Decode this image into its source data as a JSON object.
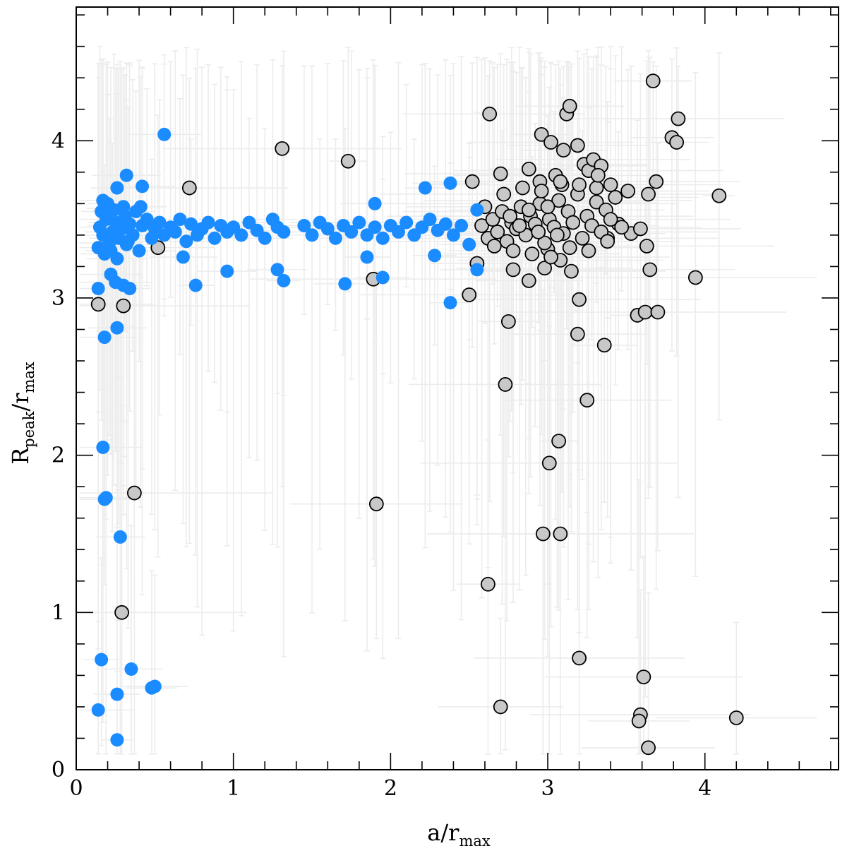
{
  "chart_data": {
    "type": "scatter",
    "title": "",
    "xlabel": {
      "base": "a/r",
      "sub": "max"
    },
    "ylabel": {
      "base": "R",
      "sub1": "peak",
      "mid": "/r",
      "sub2": "max"
    },
    "xlim": [
      0,
      4.85
    ],
    "ylim": [
      0,
      4.85
    ],
    "xticks": [
      0,
      1,
      2,
      3,
      4
    ],
    "yticks": [
      0,
      1,
      2,
      3,
      4
    ],
    "xtick_labels": [
      "0",
      "1",
      "2",
      "3",
      "4"
    ],
    "ytick_labels": [
      "0",
      "1",
      "2",
      "3",
      "4"
    ],
    "minor_tick_step": 0.2,
    "grid": false,
    "legend": "none",
    "colors": {
      "blue_series": "#1a8cff",
      "gray_series": "#c8c8c8",
      "marker_edge": "#000000",
      "error_bars": "#ececec"
    },
    "series": [
      {
        "marker": "blue-filled-circle",
        "color": "#1a8cff",
        "points": [
          [
            0.15,
            3.45
          ],
          [
            0.17,
            3.4
          ],
          [
            0.19,
            3.5
          ],
          [
            0.21,
            3.35
          ],
          [
            0.23,
            3.42
          ],
          [
            0.25,
            3.48
          ],
          [
            0.27,
            3.38
          ],
          [
            0.29,
            3.44
          ],
          [
            0.31,
            3.52
          ],
          [
            0.33,
            3.36
          ],
          [
            0.14,
            3.32
          ],
          [
            0.16,
            3.55
          ],
          [
            0.18,
            3.28
          ],
          [
            0.2,
            3.6
          ],
          [
            0.22,
            3.3
          ],
          [
            0.24,
            3.56
          ],
          [
            0.26,
            3.25
          ],
          [
            0.28,
            3.46
          ],
          [
            0.3,
            3.58
          ],
          [
            0.32,
            3.34
          ],
          [
            0.34,
            3.47
          ],
          [
            0.36,
            3.4
          ],
          [
            0.38,
            3.55
          ],
          [
            0.4,
            3.3
          ],
          [
            0.42,
            3.46
          ],
          [
            0.45,
            3.5
          ],
          [
            0.48,
            3.38
          ],
          [
            0.5,
            3.44
          ],
          [
            0.53,
            3.48
          ],
          [
            0.56,
            3.4
          ],
          [
            0.6,
            3.45
          ],
          [
            0.63,
            3.42
          ],
          [
            0.66,
            3.5
          ],
          [
            0.7,
            3.36
          ],
          [
            0.73,
            3.47
          ],
          [
            0.77,
            3.4
          ],
          [
            0.8,
            3.44
          ],
          [
            0.84,
            3.48
          ],
          [
            0.88,
            3.38
          ],
          [
            0.92,
            3.46
          ],
          [
            0.96,
            3.42
          ],
          [
            1.0,
            3.45
          ],
          [
            1.05,
            3.4
          ],
          [
            1.1,
            3.48
          ],
          [
            1.15,
            3.43
          ],
          [
            1.2,
            3.38
          ],
          [
            1.25,
            3.5
          ],
          [
            1.28,
            3.45
          ],
          [
            1.32,
            3.42
          ],
          [
            1.45,
            3.46
          ],
          [
            1.5,
            3.4
          ],
          [
            1.55,
            3.48
          ],
          [
            1.6,
            3.44
          ],
          [
            1.65,
            3.38
          ],
          [
            1.7,
            3.46
          ],
          [
            1.75,
            3.42
          ],
          [
            1.8,
            3.48
          ],
          [
            1.85,
            3.4
          ],
          [
            1.9,
            3.45
          ],
          [
            1.95,
            3.38
          ],
          [
            2.0,
            3.46
          ],
          [
            2.05,
            3.42
          ],
          [
            2.1,
            3.48
          ],
          [
            2.15,
            3.4
          ],
          [
            2.2,
            3.45
          ],
          [
            2.25,
            3.5
          ],
          [
            2.3,
            3.43
          ],
          [
            2.35,
            3.47
          ],
          [
            2.4,
            3.4
          ],
          [
            2.45,
            3.46
          ],
          [
            0.56,
            4.04
          ],
          [
            0.32,
            3.78
          ],
          [
            0.26,
            3.7
          ],
          [
            0.42,
            3.71
          ],
          [
            0.17,
            3.62
          ],
          [
            0.41,
            3.58
          ],
          [
            0.2,
            3.57
          ],
          [
            0.22,
            3.15
          ],
          [
            0.25,
            3.1
          ],
          [
            0.3,
            3.08
          ],
          [
            0.34,
            3.06
          ],
          [
            0.14,
            3.06
          ],
          [
            0.26,
            2.81
          ],
          [
            0.18,
            2.75
          ],
          [
            0.68,
            3.26
          ],
          [
            0.76,
            3.08
          ],
          [
            0.96,
            3.17
          ],
          [
            1.28,
            3.18
          ],
          [
            1.32,
            3.11
          ],
          [
            1.71,
            3.09
          ],
          [
            1.95,
            3.13
          ],
          [
            1.9,
            3.6
          ],
          [
            2.22,
            3.7
          ],
          [
            2.38,
            3.73
          ],
          [
            2.28,
            3.27
          ],
          [
            1.85,
            3.26
          ],
          [
            2.55,
            3.18
          ],
          [
            2.38,
            2.97
          ],
          [
            2.5,
            3.34
          ],
          [
            2.55,
            3.56
          ],
          [
            0.17,
            2.05
          ],
          [
            0.19,
            1.73
          ],
          [
            0.18,
            1.72
          ],
          [
            0.28,
            1.48
          ],
          [
            0.16,
            0.7
          ],
          [
            0.35,
            0.64
          ],
          [
            0.14,
            0.38
          ],
          [
            0.26,
            0.48
          ],
          [
            0.26,
            0.19
          ],
          [
            0.48,
            0.52
          ],
          [
            0.5,
            0.53
          ]
        ]
      },
      {
        "marker": "gray-filled-circle",
        "color": "#c8c8c8",
        "points": [
          [
            0.14,
            2.96
          ],
          [
            0.3,
            2.95
          ],
          [
            0.29,
            1.0
          ],
          [
            0.37,
            1.76
          ],
          [
            0.52,
            3.32
          ],
          [
            0.72,
            3.7
          ],
          [
            1.31,
            3.95
          ],
          [
            1.73,
            3.87
          ],
          [
            1.89,
            3.12
          ],
          [
            1.91,
            1.69
          ],
          [
            2.5,
            3.02
          ],
          [
            2.55,
            3.22
          ],
          [
            2.52,
            3.74
          ],
          [
            2.63,
            4.17
          ],
          [
            2.7,
            3.79
          ],
          [
            2.75,
            2.85
          ],
          [
            2.73,
            2.45
          ],
          [
            2.62,
            1.18
          ],
          [
            2.7,
            0.4
          ],
          [
            2.78,
            3.18
          ],
          [
            2.88,
            3.11
          ],
          [
            2.88,
            3.82
          ],
          [
            2.95,
            3.74
          ],
          [
            2.96,
            4.04
          ],
          [
            2.98,
            3.19
          ],
          [
            3.0,
            3.31
          ],
          [
            3.01,
            1.95
          ],
          [
            3.02,
            3.99
          ],
          [
            3.05,
            3.78
          ],
          [
            3.07,
            2.09
          ],
          [
            3.08,
            3.24
          ],
          [
            3.09,
            3.72
          ],
          [
            3.1,
            3.94
          ],
          [
            3.12,
            4.17
          ],
          [
            3.14,
            4.22
          ],
          [
            3.15,
            3.17
          ],
          [
            3.19,
            3.97
          ],
          [
            3.2,
            2.99
          ],
          [
            3.19,
            2.77
          ],
          [
            3.23,
            3.85
          ],
          [
            3.25,
            2.35
          ],
          [
            3.26,
            3.81
          ],
          [
            3.29,
            3.88
          ],
          [
            3.31,
            3.61
          ],
          [
            3.34,
            3.84
          ],
          [
            3.36,
            2.7
          ],
          [
            3.38,
            3.38
          ],
          [
            3.4,
            3.72
          ],
          [
            3.45,
            3.47
          ],
          [
            3.51,
            3.68
          ],
          [
            3.53,
            3.41
          ],
          [
            3.57,
            2.89
          ],
          [
            3.59,
            3.44
          ],
          [
            3.62,
            2.91
          ],
          [
            3.63,
            3.33
          ],
          [
            3.64,
            3.66
          ],
          [
            3.65,
            3.18
          ],
          [
            3.67,
            4.38
          ],
          [
            3.69,
            3.74
          ],
          [
            3.7,
            2.91
          ],
          [
            3.79,
            4.02
          ],
          [
            3.82,
            3.99
          ],
          [
            3.83,
            4.14
          ],
          [
            3.94,
            3.13
          ],
          [
            4.09,
            3.65
          ],
          [
            4.2,
            0.33
          ],
          [
            3.61,
            0.59
          ],
          [
            3.59,
            0.35
          ],
          [
            3.58,
            0.31
          ],
          [
            3.64,
            0.14
          ],
          [
            2.97,
            1.5
          ],
          [
            3.08,
            1.5
          ],
          [
            3.2,
            0.71
          ],
          [
            2.58,
            3.46
          ],
          [
            2.62,
            3.38
          ],
          [
            2.65,
            3.5
          ],
          [
            2.68,
            3.42
          ],
          [
            2.71,
            3.55
          ],
          [
            2.74,
            3.36
          ],
          [
            2.77,
            3.48
          ],
          [
            2.8,
            3.44
          ],
          [
            2.83,
            3.58
          ],
          [
            2.86,
            3.4
          ],
          [
            2.89,
            3.52
          ],
          [
            2.92,
            3.47
          ],
          [
            2.95,
            3.6
          ],
          [
            2.98,
            3.35
          ],
          [
            3.01,
            3.5
          ],
          [
            3.04,
            3.45
          ],
          [
            3.07,
            3.62
          ],
          [
            3.1,
            3.41
          ],
          [
            3.13,
            3.55
          ],
          [
            3.16,
            3.48
          ],
          [
            3.19,
            3.66
          ],
          [
            3.22,
            3.38
          ],
          [
            3.25,
            3.52
          ],
          [
            3.28,
            3.46
          ],
          [
            3.31,
            3.7
          ],
          [
            3.34,
            3.42
          ],
          [
            3.37,
            3.56
          ],
          [
            3.4,
            3.5
          ],
          [
            3.43,
            3.64
          ],
          [
            3.47,
            3.45
          ],
          [
            2.6,
            3.58
          ],
          [
            2.66,
            3.33
          ],
          [
            2.72,
            3.66
          ],
          [
            2.78,
            3.3
          ],
          [
            2.84,
            3.7
          ],
          [
            2.9,
            3.28
          ],
          [
            2.96,
            3.68
          ],
          [
            3.02,
            3.26
          ],
          [
            3.08,
            3.74
          ],
          [
            3.14,
            3.32
          ],
          [
            3.2,
            3.72
          ],
          [
            3.26,
            3.3
          ],
          [
            3.32,
            3.78
          ],
          [
            3.38,
            3.36
          ],
          [
            2.76,
            3.52
          ],
          [
            2.82,
            3.46
          ],
          [
            2.88,
            3.56
          ],
          [
            2.94,
            3.42
          ],
          [
            3.0,
            3.58
          ],
          [
            3.06,
            3.4
          ]
        ]
      }
    ]
  }
}
